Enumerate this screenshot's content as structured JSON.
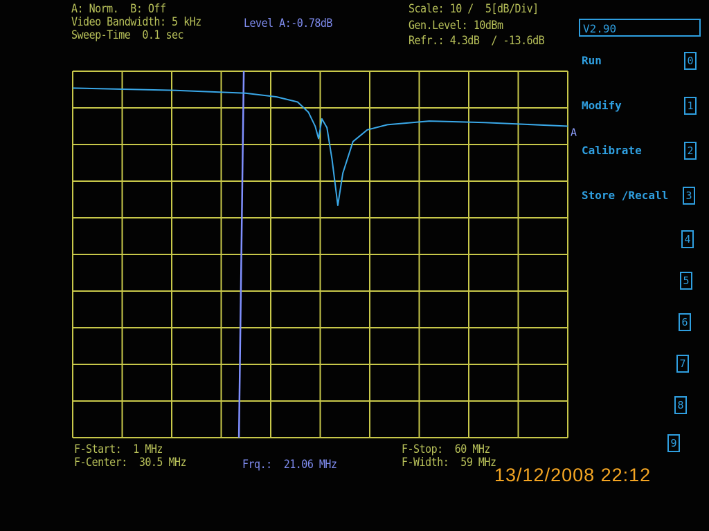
{
  "header": {
    "trace_mode": "A: Norm.  B: Off",
    "video_bandwidth": "Video Bandwidth: 5 kHz",
    "sweep_time": "Sweep-Time  0.1 sec",
    "level_marker": "Level A:-0.78dB",
    "scale": "Scale: 10 /  5[dB/Div]",
    "gen_level": "Gen.Level: 10dBm",
    "reference": "Refr.: 4.3dB  / -13.6dB"
  },
  "footer": {
    "f_start": "F-Start:  1 MHz",
    "f_center": "F-Center:  30.5 MHz",
    "marker_freq": "Frq.:  21.06 MHz",
    "f_stop": "F-Stop:  60 MHz",
    "f_width": "F-Width:  59 MHz"
  },
  "menu": {
    "version": "V2.90",
    "items": [
      {
        "label": "Run",
        "key": "0"
      },
      {
        "label": "Modify",
        "key": "1"
      },
      {
        "label": "Calibrate",
        "key": "2"
      },
      {
        "label": "Store /Recall",
        "key": "3"
      },
      {
        "label": "",
        "key": "4"
      },
      {
        "label": "",
        "key": "5"
      },
      {
        "label": "",
        "key": "6"
      },
      {
        "label": "",
        "key": "7"
      },
      {
        "label": "",
        "key": "8"
      },
      {
        "label": "",
        "key": "9"
      }
    ]
  },
  "timestamp": "13/12/2008  22:12",
  "colors": {
    "grid": "#c8c84a",
    "trace": "#3aa8e8",
    "marker": "#8090ff",
    "text": "#b9c25a",
    "menu": "#2f9fe0",
    "stamp": "#f5a623"
  },
  "chart_data": {
    "type": "line",
    "xlim": [
      1,
      60
    ],
    "ylim": [
      -48,
      2
    ],
    "x_divisions": 10,
    "y_divisions": 10,
    "grid": true,
    "trace_label": "A",
    "marker_x": 21.06,
    "series": [
      {
        "x": [
          1,
          13,
          21.6,
          25.3,
          27.8,
          29.1,
          29.9,
          30.3,
          30.7,
          31.3,
          31.9,
          32.6,
          33.2,
          34.4,
          36.1,
          38.5,
          43.5,
          50.1,
          60
        ],
        "y": [
          -0.3,
          -0.6,
          -1.0,
          -1.5,
          -2.2,
          -3.6,
          -5.5,
          -7.2,
          -4.5,
          -5.7,
          -10,
          -16.3,
          -11.9,
          -7.6,
          -6.0,
          -5.3,
          -4.8,
          -5.0,
          -5.5
        ]
      }
    ]
  }
}
